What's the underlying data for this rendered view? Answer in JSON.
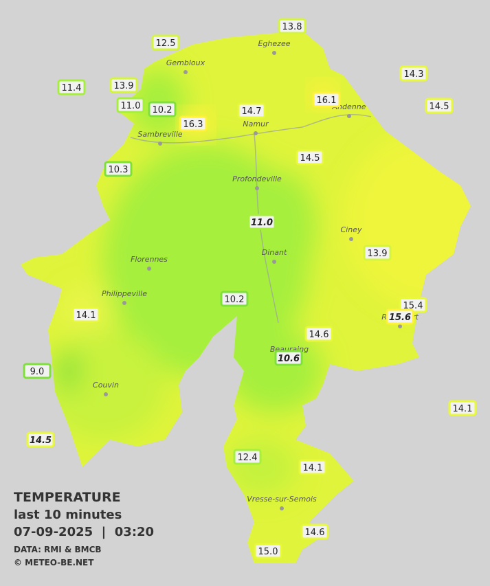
{
  "map": {
    "title": "TEMPERATURE",
    "subtitle": "last 10 minutes",
    "datetime": "07-09-2025  |  03:20",
    "source": "DATA: RMI & BMCB",
    "credit": "© METEO-BE.NET",
    "cities": [
      "Eghezee",
      "Gembloux",
      "Andenne",
      "Namur",
      "Sambreville",
      "Profondeville",
      "Ciney",
      "Dinant",
      "Florennes",
      "Philippeville",
      "Rochefort",
      "Beauraing",
      "Couvin",
      "Vresse-sur-Semois"
    ],
    "stations": [
      {
        "value": "13.8"
      },
      {
        "value": "12.5"
      },
      {
        "value": "14.3"
      },
      {
        "value": "11.4"
      },
      {
        "value": "13.9"
      },
      {
        "value": "16.1"
      },
      {
        "value": "14.5"
      },
      {
        "value": "11.0"
      },
      {
        "value": "10.2"
      },
      {
        "value": "14.7"
      },
      {
        "value": "16.3"
      },
      {
        "value": "14.5"
      },
      {
        "value": "10.3"
      },
      {
        "value": "11.0",
        "italic": true
      },
      {
        "value": "13.9"
      },
      {
        "value": "10.2"
      },
      {
        "value": "15.4"
      },
      {
        "value": "15.6",
        "italic": true
      },
      {
        "value": "14.1"
      },
      {
        "value": "14.6"
      },
      {
        "value": "10.6",
        "italic": true
      },
      {
        "value": "9.0"
      },
      {
        "value": "14.1"
      },
      {
        "value": "14.5",
        "italic": true
      },
      {
        "value": "12.4"
      },
      {
        "value": "14.1"
      },
      {
        "value": "14.6"
      },
      {
        "value": "15.0"
      }
    ]
  }
}
